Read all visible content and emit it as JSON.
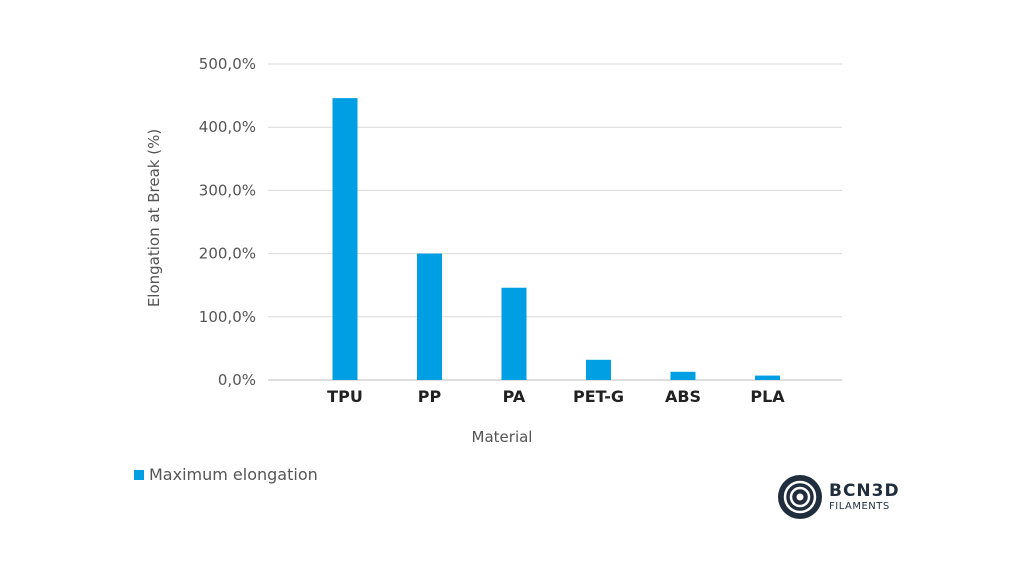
{
  "chart_data": {
    "type": "bar",
    "categories": [
      "TPU",
      "PP",
      "PA",
      "PET-G",
      "ABS",
      "PLA"
    ],
    "series": [
      {
        "name": "Maximum elongation",
        "values": [
          446,
          200,
          146,
          32,
          13,
          7
        ]
      }
    ],
    "xlabel": "Material",
    "ylabel": "Elongation at Break (%)",
    "ylim": [
      0,
      500
    ],
    "yticks": [
      "0,0%",
      "100,0%",
      "200,0%",
      "300,0%",
      "400,0%",
      "500,0%"
    ],
    "grid": true,
    "legend": "bottom-left",
    "color": "#009fe3"
  },
  "logo": {
    "line1": "BCN3D",
    "line2": "FILAMENTS"
  }
}
